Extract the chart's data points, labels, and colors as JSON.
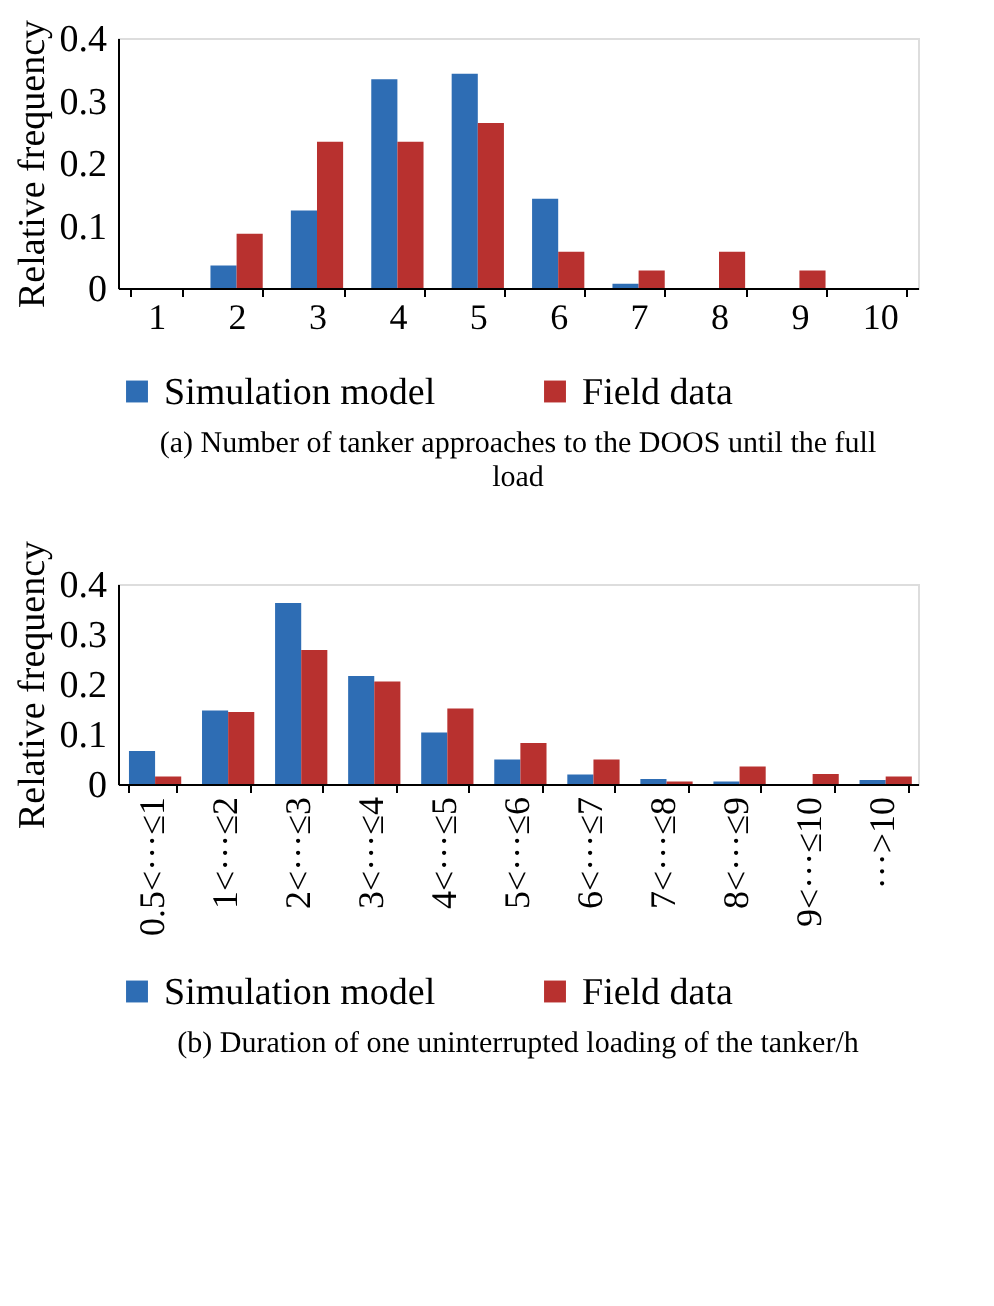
{
  "chart_data": [
    {
      "type": "bar",
      "title": "(a) Number of tanker approaches to the DOOS until the full load",
      "ylabel": "Relative frequency",
      "categories": [
        "1",
        "2",
        "3",
        "4",
        "5",
        "6",
        "7",
        "8",
        "9",
        "10"
      ],
      "series": [
        {
          "name": "Simulation model",
          "color": "#2e6db4",
          "values": [
            0,
            0.036,
            0.124,
            0.334,
            0.343,
            0.143,
            0.007,
            0,
            0,
            0
          ]
        },
        {
          "name": "Field data",
          "color": "#b8312f",
          "values": [
            0,
            0.087,
            0.234,
            0.234,
            0.264,
            0.058,
            0.028,
            0.058,
            0.028,
            0
          ]
        }
      ],
      "ylim": [
        0,
        0.4
      ],
      "yticks": [
        0,
        0.1,
        0.2,
        0.3,
        0.4
      ],
      "grid": false,
      "legend": "bottom"
    },
    {
      "type": "bar",
      "title": "(b) Duration of one uninterrupted loading of the tanker/h",
      "ylabel": "Relative frequency",
      "categories": [
        "0.5<···≤1",
        "1<···≤2",
        "2<···≤3",
        "3<···≤4",
        "4<···≤5",
        "5<···≤6",
        "6<···≤7",
        "7<···≤8",
        "8<···≤9",
        "9<···≤10",
        "···>10"
      ],
      "series": [
        {
          "name": "Simulation model",
          "color": "#2e6db4",
          "values": [
            0.066,
            0.147,
            0.362,
            0.216,
            0.103,
            0.049,
            0.019,
            0.01,
            0.005,
            0,
            0.008
          ]
        },
        {
          "name": "Field data",
          "color": "#b8312f",
          "values": [
            0.015,
            0.144,
            0.268,
            0.205,
            0.151,
            0.082,
            0.049,
            0.005,
            0.035,
            0.02,
            0.015
          ]
        }
      ],
      "ylim": [
        0,
        0.4
      ],
      "yticks": [
        0,
        0.1,
        0.2,
        0.3,
        0.4
      ],
      "grid": false,
      "legend": "bottom"
    }
  ]
}
